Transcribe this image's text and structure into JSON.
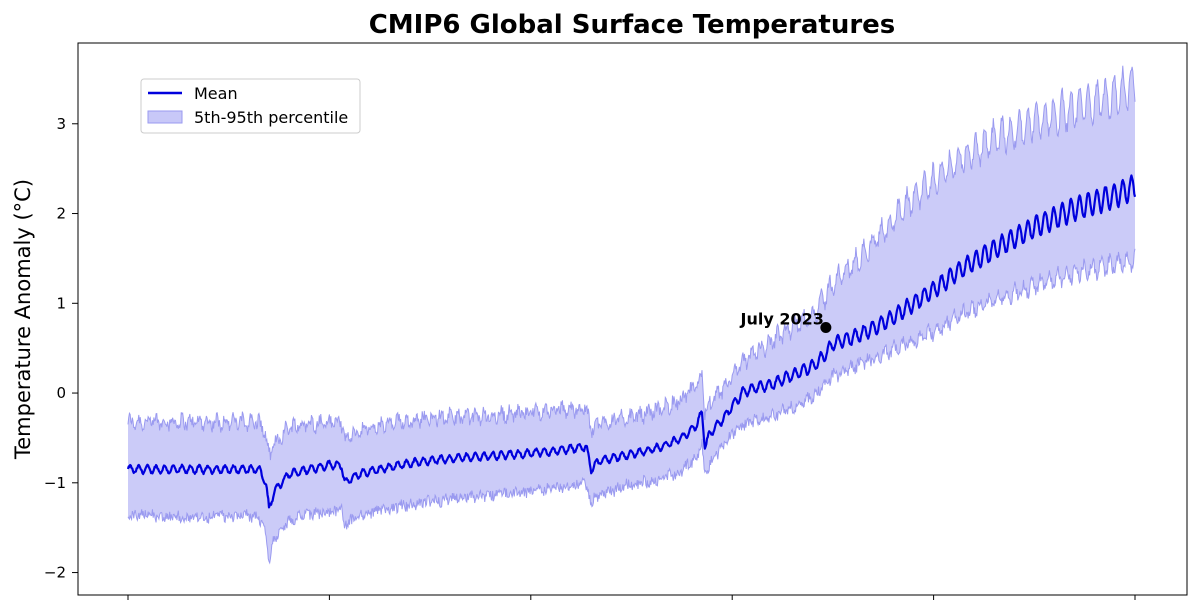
{
  "chart_data": {
    "type": "area",
    "title": "CMIP6 Global Surface Temperatures",
    "xlabel": "",
    "ylabel": "Temperature Anomaly (°C)",
    "x_tick_labels": [
      "",
      "",
      "",
      "",
      "",
      ""
    ],
    "x_range": [
      0,
      1000
    ],
    "ylim": [
      -2.25,
      3.9
    ],
    "y_ticks": [
      -2,
      -1,
      0,
      1,
      2,
      3
    ],
    "y_tick_labels": [
      "−2",
      "−1",
      "0",
      "1",
      "2",
      "3"
    ],
    "grid": false,
    "legend_position": "top-left",
    "colors": {
      "mean": "#0000dd",
      "band_fill": "#c8c8f8",
      "band_edge": "#9a9af0",
      "annotation_marker": "#000000"
    },
    "series": [
      {
        "name": "Mean",
        "style": "line",
        "x": [
          0,
          30,
          60,
          100,
          130,
          137,
          140,
          145,
          160,
          200,
          212,
          215,
          230,
          250,
          270,
          300,
          330,
          360,
          390,
          420,
          455,
          460,
          463,
          470,
          500,
          530,
          550,
          565,
          570,
          573,
          578,
          590,
          600,
          610,
          620,
          640,
          660,
          680,
          690,
          700,
          720,
          740,
          760,
          780,
          800,
          830,
          860,
          900,
          940,
          980,
          1000
        ],
        "y": [
          -0.85,
          -0.85,
          -0.85,
          -0.85,
          -0.85,
          -1.0,
          -1.3,
          -1.1,
          -0.9,
          -0.8,
          -0.8,
          -1.0,
          -0.9,
          -0.85,
          -0.8,
          -0.75,
          -0.72,
          -0.7,
          -0.68,
          -0.65,
          -0.6,
          -0.85,
          -0.8,
          -0.75,
          -0.68,
          -0.6,
          -0.5,
          -0.35,
          -0.22,
          -0.6,
          -0.45,
          -0.3,
          -0.15,
          0.0,
          0.05,
          0.1,
          0.2,
          0.3,
          0.4,
          0.55,
          0.62,
          0.72,
          0.85,
          1.0,
          1.15,
          1.4,
          1.6,
          1.85,
          2.05,
          2.2,
          2.3
        ]
      },
      {
        "name": "5th-95th percentile",
        "style": "band",
        "x": [
          0,
          30,
          60,
          100,
          130,
          137,
          140,
          145,
          160,
          200,
          212,
          215,
          230,
          250,
          270,
          300,
          330,
          360,
          390,
          420,
          455,
          460,
          463,
          470,
          500,
          530,
          550,
          565,
          570,
          573,
          578,
          590,
          600,
          610,
          620,
          640,
          660,
          680,
          690,
          700,
          720,
          740,
          760,
          780,
          800,
          830,
          860,
          900,
          940,
          980,
          1000
        ],
        "lower": [
          -1.35,
          -1.35,
          -1.38,
          -1.35,
          -1.37,
          -1.55,
          -1.85,
          -1.6,
          -1.4,
          -1.3,
          -1.3,
          -1.45,
          -1.35,
          -1.3,
          -1.25,
          -1.2,
          -1.15,
          -1.12,
          -1.1,
          -1.05,
          -1.0,
          -1.25,
          -1.15,
          -1.12,
          -1.0,
          -0.95,
          -0.85,
          -0.7,
          -0.55,
          -0.9,
          -0.75,
          -0.6,
          -0.45,
          -0.35,
          -0.3,
          -0.25,
          -0.15,
          -0.05,
          0.1,
          0.2,
          0.3,
          0.4,
          0.5,
          0.6,
          0.7,
          0.9,
          1.05,
          1.2,
          1.35,
          1.45,
          1.5
        ],
        "upper": [
          -0.35,
          -0.35,
          -0.35,
          -0.35,
          -0.35,
          -0.5,
          -0.75,
          -0.6,
          -0.4,
          -0.35,
          -0.35,
          -0.55,
          -0.45,
          -0.4,
          -0.35,
          -0.3,
          -0.3,
          -0.28,
          -0.25,
          -0.22,
          -0.2,
          -0.45,
          -0.4,
          -0.35,
          -0.3,
          -0.2,
          -0.1,
          0.05,
          0.2,
          -0.25,
          -0.15,
          0.0,
          0.15,
          0.3,
          0.4,
          0.55,
          0.7,
          0.85,
          1.0,
          1.2,
          1.4,
          1.65,
          1.9,
          2.15,
          2.35,
          2.6,
          2.8,
          3.0,
          3.15,
          3.3,
          3.4
        ]
      }
    ],
    "annotations": [
      {
        "text": "July 2023",
        "x": 693,
        "y": 0.73
      }
    ]
  }
}
